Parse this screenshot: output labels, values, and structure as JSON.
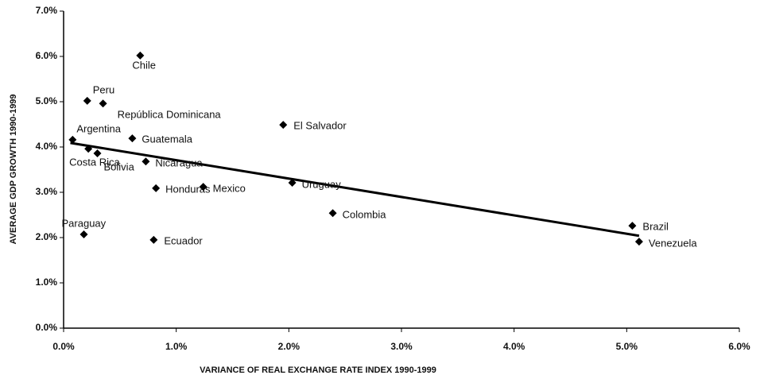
{
  "chart_data": {
    "type": "scatter",
    "xlabel": "VARIANCE OF REAL EXCHANGE RATE INDEX 1990-1999",
    "ylabel": "AVERAGE GDP GROWTH 1990-1999",
    "series": [
      {
        "name": null,
        "color": "#000000",
        "labels": [
          "Chile",
          "Peru",
          "República Dominicana",
          "Argentina",
          "Costa Rica",
          "Bolivia",
          "Guatemala",
          "Nicaragua",
          "Honduras",
          "Mexico",
          "El Salvador",
          "Uruguay",
          "Colombia",
          "Paraguay",
          "Ecuador",
          "Brazil",
          "Venezuela"
        ],
        "x": [
          0.68,
          0.21,
          0.35,
          0.08,
          0.22,
          0.3,
          0.61,
          0.73,
          0.82,
          1.24,
          1.95,
          2.03,
          2.39,
          0.18,
          0.8,
          5.05,
          5.11
        ],
        "values": [
          6.02,
          5.02,
          4.96,
          4.16,
          3.96,
          3.86,
          4.19,
          3.68,
          3.09,
          3.12,
          4.49,
          3.21,
          2.54,
          2.07,
          1.95,
          2.26,
          1.91
        ]
      }
    ],
    "trendline": {
      "x": [
        0.06,
        5.11
      ],
      "values": [
        4.09,
        2.04
      ],
      "color": "#000000"
    },
    "xlim": [
      0,
      6
    ],
    "ylim": [
      0,
      7
    ],
    "xticks": [
      {
        "value": 0,
        "label": "0.0%"
      },
      {
        "value": 1,
        "label": "1.0%"
      },
      {
        "value": 2,
        "label": "2.0%"
      },
      {
        "value": 3,
        "label": "3.0%"
      },
      {
        "value": 4,
        "label": "4.0%"
      },
      {
        "value": 5,
        "label": "5.0%"
      },
      {
        "value": 6,
        "label": "6.0%"
      }
    ],
    "yticks": [
      {
        "value": 0,
        "label": "0.0%"
      },
      {
        "value": 1,
        "label": "1.0%"
      },
      {
        "value": 2,
        "label": "2.0%"
      },
      {
        "value": 3,
        "label": "3.0%"
      },
      {
        "value": 4,
        "label": "4.0%"
      },
      {
        "value": 5,
        "label": "5.0%"
      },
      {
        "value": 6,
        "label": "6.0%"
      },
      {
        "value": 7,
        "label": "7.0%"
      }
    ],
    "grid": false
  }
}
